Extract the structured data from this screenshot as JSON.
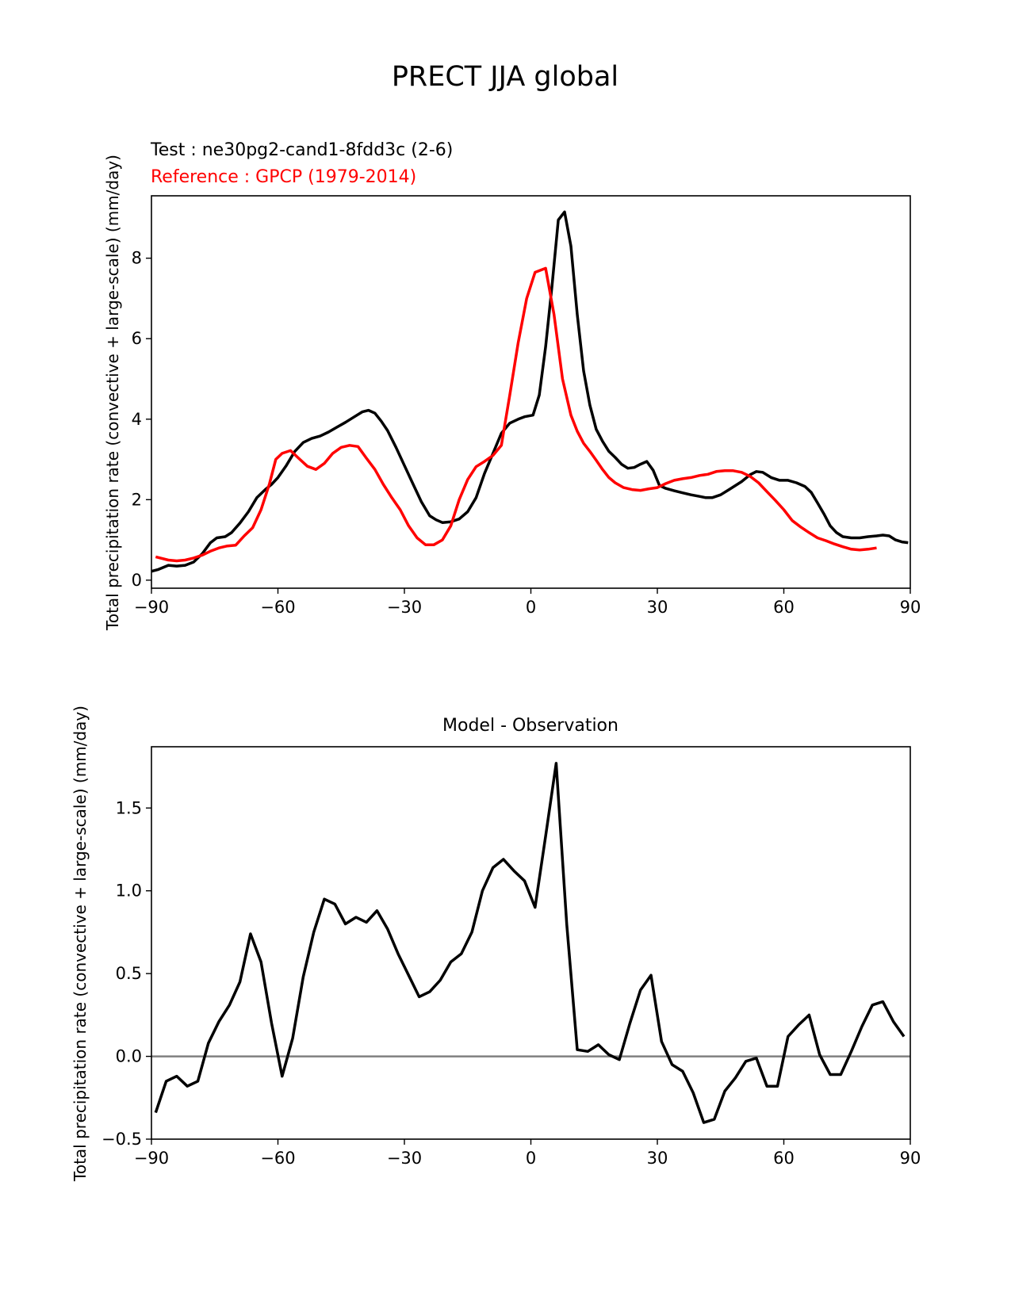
{
  "figure": {
    "suptitle": "PRECT JJA global"
  },
  "chart_data": [
    {
      "type": "line",
      "title_left_test": "Test : ne30pg2-cand1-8fdd3c (2-6)",
      "title_left_ref": "Reference : GPCP (1979-2014)",
      "xlabel": "",
      "ylabel": "Total precipitation rate (convective + large-scale) (mm/day)",
      "xlim": [
        -90,
        90
      ],
      "ylim": [
        -0.2,
        9.55
      ],
      "xticks": [
        -90,
        -60,
        -30,
        0,
        30,
        60,
        90
      ],
      "xtick_labels": [
        "−90",
        "−60",
        "−30",
        "0",
        "30",
        "60",
        "90"
      ],
      "yticks": [
        0,
        2,
        4,
        6,
        8
      ],
      "ytick_labels": [
        "0",
        "2",
        "4",
        "6",
        "8"
      ],
      "series": [
        {
          "name": "",
          "color": "#000000",
          "points": [
            [
              -90,
              0.22
            ],
            [
              -88.5,
              0.26
            ],
            [
              -86,
              0.37
            ],
            [
              -84,
              0.35
            ],
            [
              -82,
              0.37
            ],
            [
              -80,
              0.45
            ],
            [
              -78,
              0.65
            ],
            [
              -76,
              0.93
            ],
            [
              -74.5,
              1.05
            ],
            [
              -72.5,
              1.08
            ],
            [
              -71,
              1.18
            ],
            [
              -69,
              1.42
            ],
            [
              -67,
              1.7
            ],
            [
              -65,
              2.05
            ],
            [
              -63,
              2.25
            ],
            [
              -61.5,
              2.38
            ],
            [
              -60,
              2.55
            ],
            [
              -58,
              2.85
            ],
            [
              -56,
              3.2
            ],
            [
              -54,
              3.42
            ],
            [
              -52,
              3.52
            ],
            [
              -50,
              3.58
            ],
            [
              -48,
              3.68
            ],
            [
              -46,
              3.8
            ],
            [
              -44,
              3.92
            ],
            [
              -42,
              4.05
            ],
            [
              -40,
              4.18
            ],
            [
              -38.5,
              4.22
            ],
            [
              -37,
              4.15
            ],
            [
              -35.5,
              3.95
            ],
            [
              -34,
              3.72
            ],
            [
              -32,
              3.3
            ],
            [
              -30,
              2.85
            ],
            [
              -28,
              2.4
            ],
            [
              -26,
              1.95
            ],
            [
              -24,
              1.6
            ],
            [
              -22.5,
              1.5
            ],
            [
              -21,
              1.43
            ],
            [
              -19,
              1.45
            ],
            [
              -17,
              1.52
            ],
            [
              -15,
              1.7
            ],
            [
              -13,
              2.05
            ],
            [
              -11,
              2.65
            ],
            [
              -9,
              3.15
            ],
            [
              -7,
              3.65
            ],
            [
              -5,
              3.9
            ],
            [
              -3,
              4.0
            ],
            [
              -1.5,
              4.06
            ],
            [
              0.5,
              4.1
            ],
            [
              2,
              4.6
            ],
            [
              3.5,
              5.8
            ],
            [
              5,
              7.3
            ],
            [
              6.5,
              8.95
            ],
            [
              8,
              9.15
            ],
            [
              9.5,
              8.3
            ],
            [
              11,
              6.6
            ],
            [
              12.5,
              5.2
            ],
            [
              14,
              4.35
            ],
            [
              15.5,
              3.75
            ],
            [
              17,
              3.45
            ],
            [
              18.5,
              3.2
            ],
            [
              20,
              3.05
            ],
            [
              21.5,
              2.88
            ],
            [
              23,
              2.78
            ],
            [
              24.5,
              2.8
            ],
            [
              26,
              2.88
            ],
            [
              27.5,
              2.95
            ],
            [
              29,
              2.73
            ],
            [
              30.5,
              2.35
            ],
            [
              32,
              2.28
            ],
            [
              34,
              2.22
            ],
            [
              36,
              2.17
            ],
            [
              38,
              2.12
            ],
            [
              40,
              2.08
            ],
            [
              41.5,
              2.05
            ],
            [
              43,
              2.05
            ],
            [
              45,
              2.12
            ],
            [
              47,
              2.25
            ],
            [
              50,
              2.45
            ],
            [
              52,
              2.62
            ],
            [
              53.5,
              2.7
            ],
            [
              55,
              2.68
            ],
            [
              57,
              2.55
            ],
            [
              59,
              2.48
            ],
            [
              61,
              2.48
            ],
            [
              63,
              2.42
            ],
            [
              65,
              2.33
            ],
            [
              66.5,
              2.18
            ],
            [
              68,
              1.92
            ],
            [
              69.5,
              1.65
            ],
            [
              71,
              1.35
            ],
            [
              72.5,
              1.18
            ],
            [
              74,
              1.08
            ],
            [
              76,
              1.05
            ],
            [
              78,
              1.05
            ],
            [
              80,
              1.08
            ],
            [
              82,
              1.1
            ],
            [
              83.5,
              1.12
            ],
            [
              85,
              1.1
            ],
            [
              86.5,
              1.0
            ],
            [
              88,
              0.95
            ],
            [
              89.5,
              0.93
            ]
          ]
        },
        {
          "name": "",
          "color": "#ff0000",
          "points": [
            [
              -89,
              0.58
            ],
            [
              -86,
              0.5
            ],
            [
              -84,
              0.48
            ],
            [
              -82,
              0.5
            ],
            [
              -80,
              0.55
            ],
            [
              -78,
              0.62
            ],
            [
              -76,
              0.72
            ],
            [
              -74,
              0.8
            ],
            [
              -72,
              0.85
            ],
            [
              -70,
              0.87
            ],
            [
              -68,
              1.1
            ],
            [
              -66,
              1.3
            ],
            [
              -64,
              1.75
            ],
            [
              -62,
              2.4
            ],
            [
              -60.5,
              3.0
            ],
            [
              -59,
              3.15
            ],
            [
              -57,
              3.22
            ],
            [
              -55,
              3.02
            ],
            [
              -53,
              2.83
            ],
            [
              -51,
              2.75
            ],
            [
              -49,
              2.9
            ],
            [
              -47,
              3.15
            ],
            [
              -45,
              3.3
            ],
            [
              -43,
              3.35
            ],
            [
              -41,
              3.32
            ],
            [
              -39,
              3.03
            ],
            [
              -37,
              2.75
            ],
            [
              -35,
              2.38
            ],
            [
              -33,
              2.05
            ],
            [
              -31,
              1.75
            ],
            [
              -29,
              1.35
            ],
            [
              -27,
              1.05
            ],
            [
              -25,
              0.88
            ],
            [
              -23,
              0.88
            ],
            [
              -21,
              1.0
            ],
            [
              -19,
              1.35
            ],
            [
              -17,
              2.0
            ],
            [
              -15,
              2.5
            ],
            [
              -13,
              2.82
            ],
            [
              -11,
              2.95
            ],
            [
              -9,
              3.1
            ],
            [
              -7,
              3.35
            ],
            [
              -5,
              4.6
            ],
            [
              -3,
              5.9
            ],
            [
              -1,
              7.0
            ],
            [
              1,
              7.65
            ],
            [
              3.5,
              7.75
            ],
            [
              5.5,
              6.6
            ],
            [
              7.5,
              5.0
            ],
            [
              9.5,
              4.1
            ],
            [
              11,
              3.7
            ],
            [
              12.5,
              3.4
            ],
            [
              14,
              3.2
            ],
            [
              15.5,
              2.98
            ],
            [
              17,
              2.75
            ],
            [
              18.5,
              2.55
            ],
            [
              20,
              2.42
            ],
            [
              22,
              2.3
            ],
            [
              24,
              2.25
            ],
            [
              26,
              2.23
            ],
            [
              28,
              2.27
            ],
            [
              30,
              2.3
            ],
            [
              32,
              2.4
            ],
            [
              34,
              2.48
            ],
            [
              36,
              2.52
            ],
            [
              38,
              2.55
            ],
            [
              40,
              2.6
            ],
            [
              42,
              2.63
            ],
            [
              44,
              2.7
            ],
            [
              46,
              2.72
            ],
            [
              48,
              2.72
            ],
            [
              50,
              2.68
            ],
            [
              52,
              2.58
            ],
            [
              54,
              2.42
            ],
            [
              56,
              2.2
            ],
            [
              58,
              1.98
            ],
            [
              60,
              1.75
            ],
            [
              62,
              1.48
            ],
            [
              64,
              1.32
            ],
            [
              66,
              1.18
            ],
            [
              68,
              1.05
            ],
            [
              70,
              0.98
            ],
            [
              72,
              0.9
            ],
            [
              74,
              0.83
            ],
            [
              76,
              0.77
            ],
            [
              78,
              0.75
            ],
            [
              80,
              0.77
            ],
            [
              82,
              0.8
            ]
          ]
        }
      ]
    },
    {
      "type": "line",
      "title": "Model - Observation",
      "xlabel": "",
      "ylabel": "Total precipitation rate (convective + large-scale) (mm/day)",
      "xlim": [
        -90,
        90
      ],
      "ylim": [
        -0.5,
        1.87
      ],
      "xticks": [
        -90,
        -60,
        -30,
        0,
        30,
        60,
        90
      ],
      "xtick_labels": [
        "−90",
        "−60",
        "−30",
        "0",
        "30",
        "60",
        "90"
      ],
      "yticks": [
        -0.5,
        0.0,
        0.5,
        1.0,
        1.5
      ],
      "ytick_labels": [
        "−0.5",
        "0.0",
        "0.5",
        "1.0",
        "1.5"
      ],
      "zero_line_color": "#808080",
      "series": [
        {
          "name": "",
          "color": "#000000",
          "points": [
            [
              -89,
              -0.34
            ],
            [
              -86.5,
              -0.15
            ],
            [
              -84,
              -0.12
            ],
            [
              -81.5,
              -0.18
            ],
            [
              -79,
              -0.15
            ],
            [
              -76.5,
              0.08
            ],
            [
              -74,
              0.21
            ],
            [
              -71.5,
              0.31
            ],
            [
              -69,
              0.45
            ],
            [
              -66.5,
              0.74
            ],
            [
              -64,
              0.57
            ],
            [
              -61.5,
              0.2
            ],
            [
              -59,
              -0.12
            ],
            [
              -56.5,
              0.11
            ],
            [
              -54,
              0.48
            ],
            [
              -51.5,
              0.75
            ],
            [
              -49,
              0.95
            ],
            [
              -46.5,
              0.92
            ],
            [
              -44,
              0.8
            ],
            [
              -41.5,
              0.84
            ],
            [
              -39,
              0.81
            ],
            [
              -36.5,
              0.88
            ],
            [
              -34,
              0.77
            ],
            [
              -31.5,
              0.62
            ],
            [
              -29,
              0.49
            ],
            [
              -26.5,
              0.36
            ],
            [
              -24,
              0.39
            ],
            [
              -21.5,
              0.46
            ],
            [
              -19,
              0.57
            ],
            [
              -16.5,
              0.62
            ],
            [
              -14,
              0.75
            ],
            [
              -11.5,
              1.0
            ],
            [
              -9,
              1.14
            ],
            [
              -6.5,
              1.19
            ],
            [
              -4,
              1.12
            ],
            [
              -1.5,
              1.06
            ],
            [
              1,
              0.9
            ],
            [
              3.5,
              1.33
            ],
            [
              6,
              1.77
            ],
            [
              8.5,
              0.8
            ],
            [
              11,
              0.04
            ],
            [
              13.5,
              0.03
            ],
            [
              16,
              0.07
            ],
            [
              18.5,
              0.01
            ],
            [
              21,
              -0.02
            ],
            [
              23.5,
              0.2
            ],
            [
              26,
              0.4
            ],
            [
              28.5,
              0.49
            ],
            [
              31,
              0.09
            ],
            [
              33.5,
              -0.05
            ],
            [
              36,
              -0.09
            ],
            [
              38.5,
              -0.22
            ],
            [
              41,
              -0.4
            ],
            [
              43.5,
              -0.38
            ],
            [
              46,
              -0.21
            ],
            [
              48.5,
              -0.13
            ],
            [
              51,
              -0.03
            ],
            [
              53.5,
              -0.01
            ],
            [
              56,
              -0.18
            ],
            [
              58.5,
              -0.18
            ],
            [
              61,
              0.12
            ],
            [
              63.5,
              0.19
            ],
            [
              66,
              0.25
            ],
            [
              68.5,
              0.01
            ],
            [
              71,
              -0.11
            ],
            [
              73.5,
              -0.11
            ],
            [
              76,
              0.03
            ],
            [
              78.5,
              0.18
            ],
            [
              81,
              0.31
            ],
            [
              83.5,
              0.33
            ],
            [
              86,
              0.21
            ],
            [
              88.5,
              0.12
            ]
          ]
        }
      ]
    }
  ]
}
